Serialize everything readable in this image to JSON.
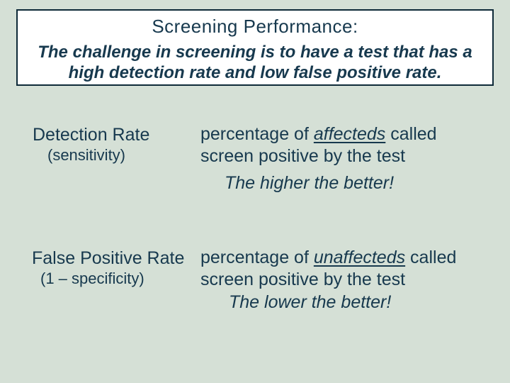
{
  "slide": {
    "header": {
      "title": "Screening Performance:",
      "subtitle_line1": "The challenge in screening is to have a test that has a",
      "subtitle_line2": "high detection rate and low false positive rate."
    },
    "sections": [
      {
        "term": "Detection Rate",
        "term_sub": "(sensitivity)",
        "def_pre": "percentage of ",
        "def_emph": "affecteds",
        "def_post": " called",
        "def_line2": "screen positive by the test",
        "note": "The higher the better!"
      },
      {
        "term": "False Positive Rate",
        "term_sub": "(1 – specificity)",
        "def_pre": "percentage of ",
        "def_emph": "unaffecteds",
        "def_post": " called",
        "def_line2": "screen positive by the test",
        "note": "The lower the better!"
      }
    ],
    "colors": {
      "background": "#d5e0d6",
      "text": "#17394e",
      "box_background": "#ffffff",
      "box_border": "#0e2a38"
    }
  }
}
